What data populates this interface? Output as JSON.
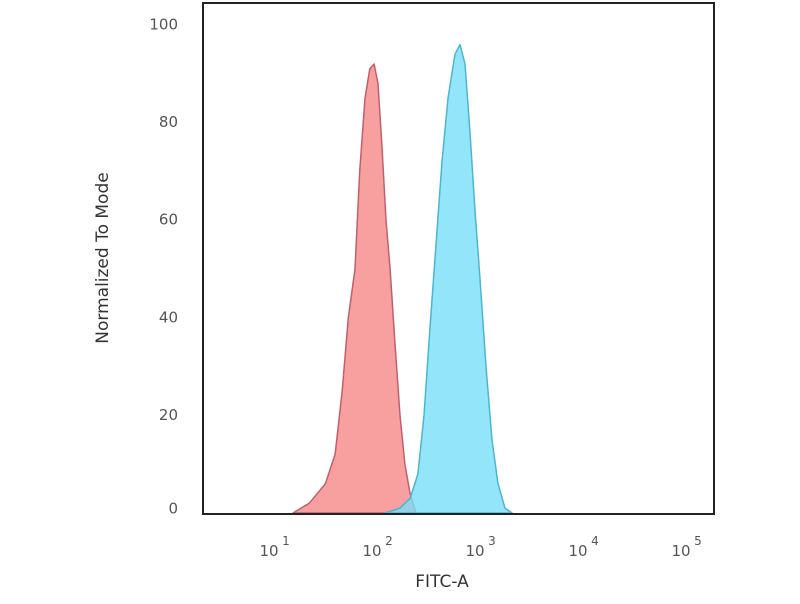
{
  "chart_data": {
    "type": "area",
    "title": "",
    "xlabel": "FITC-A",
    "ylabel": "Normalized To Mode",
    "x_scale": "log",
    "xlim": [
      10,
      100000
    ],
    "ylim": [
      0,
      100
    ],
    "x_ticks": [
      {
        "value": 10,
        "base": "10",
        "exp": "1"
      },
      {
        "value": 100,
        "base": "10",
        "exp": "2"
      },
      {
        "value": 1000,
        "base": "10",
        "exp": "3"
      },
      {
        "value": 10000,
        "base": "10",
        "exp": "4"
      },
      {
        "value": 100000,
        "base": "10",
        "exp": "5"
      }
    ],
    "y_ticks": [
      "0",
      "20",
      "40",
      "60",
      "80",
      "100"
    ],
    "grid": false,
    "series": [
      {
        "fill": "#f89a9a",
        "stroke": "#c0606c",
        "x": [
          16,
          23,
          33,
          41,
          48,
          55,
          64,
          71,
          80,
          89,
          98,
          107,
          117,
          128,
          140,
          156,
          175,
          195,
          219,
          250
        ],
        "y": [
          0,
          2,
          6,
          12,
          25,
          40,
          50,
          70,
          85,
          91,
          92,
          88,
          75,
          60,
          50,
          35,
          20,
          10,
          4,
          0
        ]
      },
      {
        "fill": "#78def8",
        "stroke": "#4cb6d0",
        "x": [
          125,
          175,
          219,
          261,
          299,
          342,
          391,
          447,
          511,
          598,
          669,
          748,
          836,
          935,
          1045,
          1196,
          1368,
          1564,
          1829,
          2140
        ],
        "y": [
          0,
          1,
          3,
          8,
          20,
          38,
          55,
          72,
          85,
          94,
          96,
          92,
          78,
          62,
          48,
          30,
          15,
          6,
          1,
          0
        ]
      }
    ]
  }
}
